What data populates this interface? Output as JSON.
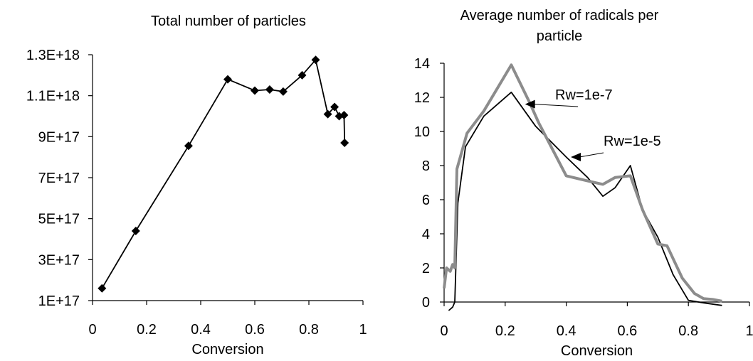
{
  "chart_data": [
    {
      "type": "line",
      "title": "Total number of particles",
      "xlabel": "Conversion",
      "ylabel": "",
      "xlim": [
        0,
        1
      ],
      "ylim": [
        1e+17,
        1.3e+18
      ],
      "x_ticks": [
        0,
        0.2,
        0.4,
        0.6,
        0.8,
        1
      ],
      "x_tick_labels": [
        "0",
        "0.2",
        "0.4",
        "0.6",
        "0.8",
        "1"
      ],
      "y_ticks": [
        1e+17,
        3e+17,
        5e+17,
        7e+17,
        9e+17,
        1.1e+18,
        1.3e+18
      ],
      "y_tick_labels": [
        "1E+17",
        "3E+17",
        "5E+17",
        "7E+17",
        "9E+17",
        "1.1E+18",
        "1.3E+18"
      ],
      "grid": false,
      "series": [
        {
          "color": "#000000",
          "marker": "diamond",
          "x": [
            0.035,
            0.16,
            0.355,
            0.5,
            0.6,
            0.655,
            0.705,
            0.775,
            0.825,
            0.87,
            0.895,
            0.912,
            0.93,
            0.932
          ],
          "y": [
            1.6e+17,
            4.4e+17,
            8.55e+17,
            1.18e+18,
            1.125e+18,
            1.13e+18,
            1.12e+18,
            1.2e+18,
            1.275e+18,
            1.01e+18,
            1.045e+18,
            1e+18,
            1.005e+18,
            8.7e+17
          ]
        }
      ]
    },
    {
      "type": "line",
      "title": "Average number of radicals per particle",
      "xlabel": "Conversion",
      "ylabel": "",
      "xlim": [
        0,
        1
      ],
      "ylim": [
        0,
        14
      ],
      "x_ticks": [
        0,
        0.2,
        0.4,
        0.6,
        0.8,
        1
      ],
      "x_tick_labels": [
        "0",
        "0.2",
        "0.4",
        "0.6",
        "0.8",
        "1"
      ],
      "y_ticks": [
        0,
        2,
        4,
        6,
        8,
        10,
        12,
        14
      ],
      "y_tick_labels": [
        "0",
        "2",
        "4",
        "6",
        "8",
        "10",
        "12",
        "14"
      ],
      "grid": false,
      "series": [
        {
          "name": "Rw=1e-7",
          "color": "#000000",
          "x": [
            0.015,
            0.028,
            0.035,
            0.045,
            0.07,
            0.13,
            0.22,
            0.3,
            0.4,
            0.47,
            0.52,
            0.56,
            0.61,
            0.65,
            0.7,
            0.75,
            0.8,
            0.85,
            0.91
          ],
          "y": [
            -0.5,
            -0.3,
            0.0,
            5.8,
            9.1,
            10.9,
            12.3,
            10.3,
            8.5,
            7.3,
            6.2,
            6.7,
            8.0,
            5.4,
            3.8,
            1.6,
            0.1,
            -0.05,
            -0.2
          ]
        },
        {
          "name": "Rw=1e-5",
          "color": "#8c8c8c",
          "x": [
            0.0,
            0.008,
            0.02,
            0.028,
            0.035,
            0.042,
            0.075,
            0.13,
            0.22,
            0.28,
            0.31,
            0.4,
            0.47,
            0.52,
            0.56,
            0.61,
            0.65,
            0.7,
            0.73,
            0.78,
            0.82,
            0.85,
            0.88,
            0.91
          ],
          "y": [
            0.8,
            2.0,
            1.8,
            2.2,
            2.0,
            7.8,
            9.9,
            11.2,
            13.9,
            11.7,
            10.5,
            7.4,
            7.1,
            6.9,
            7.3,
            7.4,
            5.4,
            3.4,
            3.3,
            1.4,
            0.5,
            0.2,
            0.15,
            0.05
          ]
        }
      ],
      "annotations": [
        {
          "text": "Rw=1e-7",
          "target_x": 0.265,
          "target_y": 11.6
        },
        {
          "text": "Rw=1e-5",
          "target_x": 0.415,
          "target_y": 8.5
        }
      ]
    }
  ]
}
